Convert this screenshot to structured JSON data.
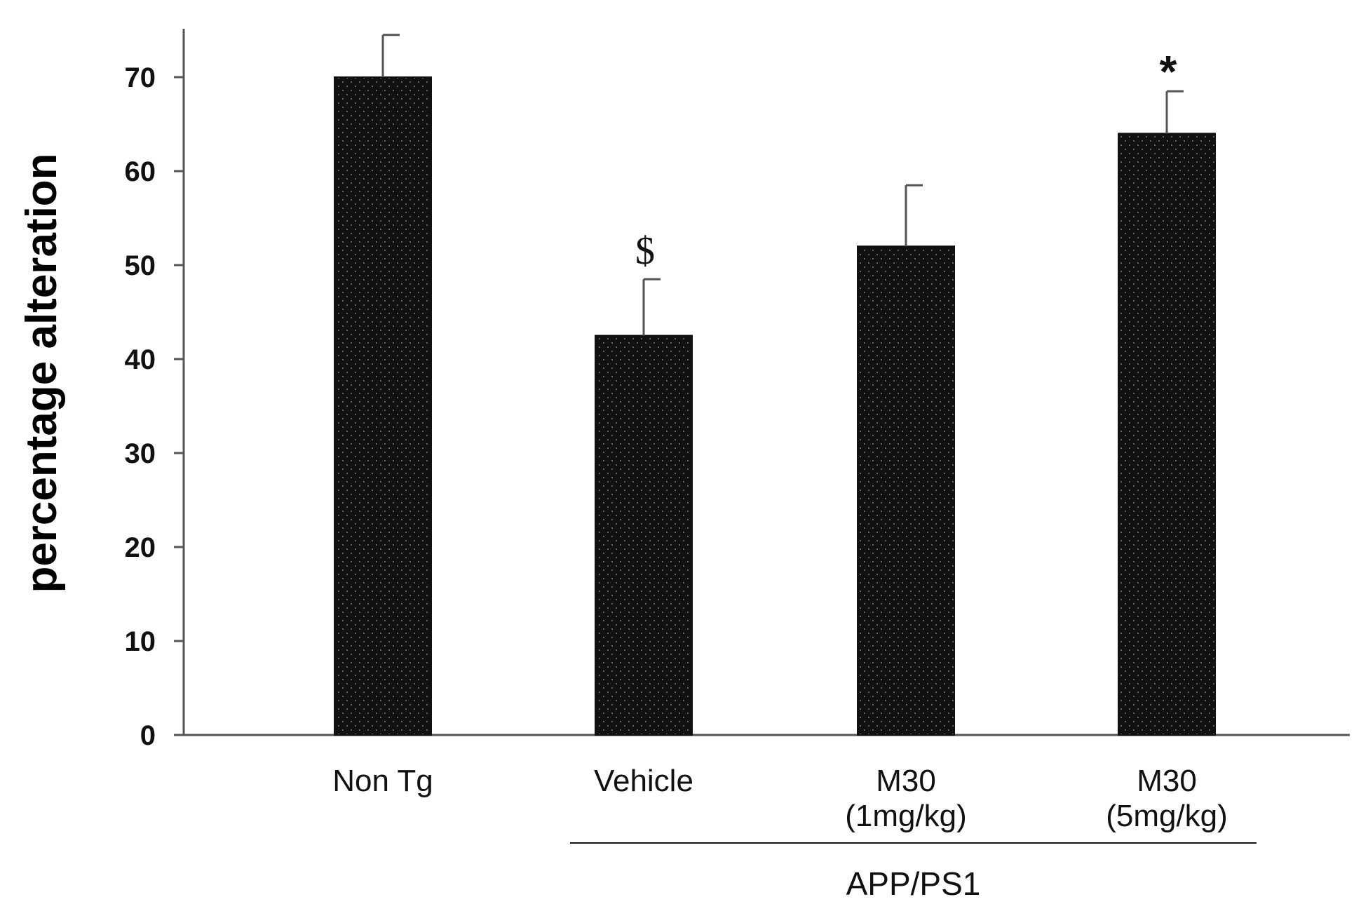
{
  "chart_data": {
    "type": "bar",
    "title": "",
    "xlabel": "",
    "ylabel": "percentage alteration",
    "ylim": [
      0,
      75
    ],
    "yticks": [
      0,
      10,
      20,
      30,
      40,
      50,
      60,
      70
    ],
    "grid": false,
    "categories": [
      [
        "Non Tg"
      ],
      [
        "Vehicle"
      ],
      [
        "M30",
        "(1mg/kg)"
      ],
      [
        "M30",
        "(5mg/kg)"
      ]
    ],
    "values": [
      70,
      42.5,
      52,
      64
    ],
    "errors": [
      4.5,
      6,
      6.5,
      4.5
    ],
    "annotations": [
      "",
      "$",
      "",
      "*"
    ],
    "group": {
      "label": "APP/PS1",
      "categories": [
        1,
        2,
        3
      ]
    },
    "colors": {
      "bar": "#111111",
      "axis": "#555555",
      "text": "#111111"
    }
  }
}
